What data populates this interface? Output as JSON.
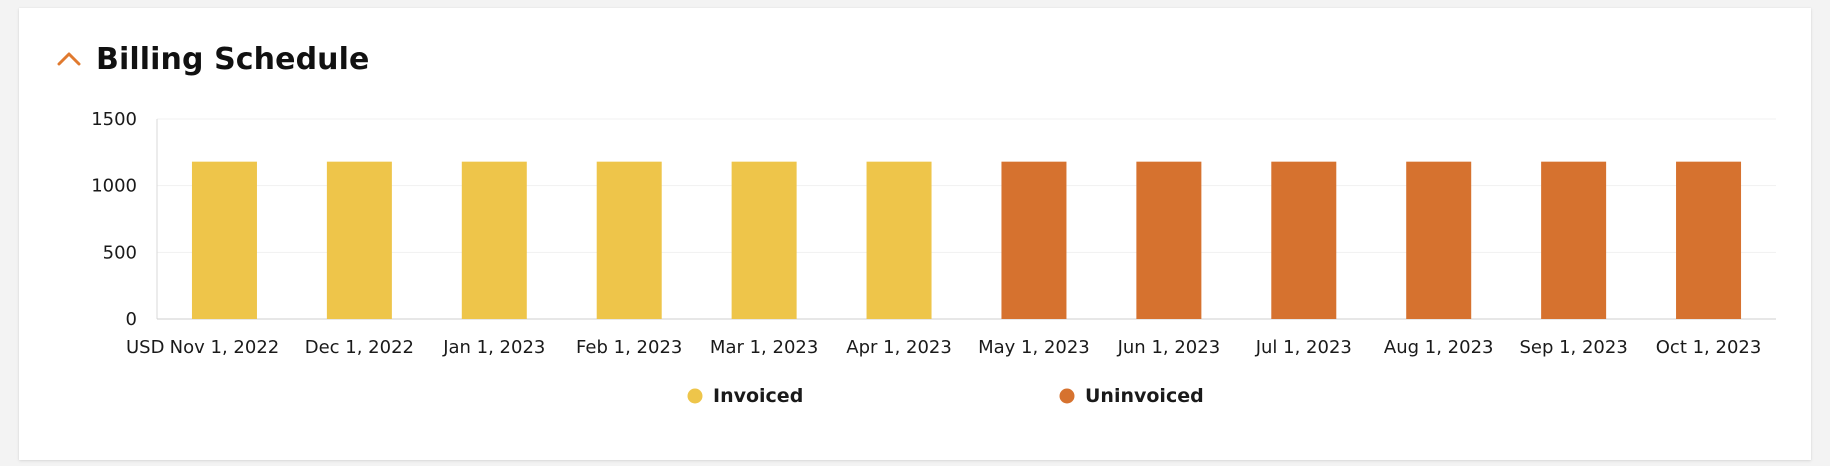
{
  "card": {
    "title": "Billing Schedule"
  },
  "icons": {
    "collapse": "chevron-up-icon"
  },
  "colors": {
    "accent": "#e07a2f",
    "invoiced": "#eec54a",
    "uninvoiced": "#d6722f"
  },
  "chart_data": {
    "type": "bar",
    "title": "Billing Schedule",
    "xlabel": "",
    "ylabel": "",
    "unit_label": "USD",
    "ylim": [
      0,
      1500
    ],
    "yticks": [
      "0",
      "500",
      "1000",
      "1500"
    ],
    "grid": true,
    "legend_position": "bottom",
    "categories": [
      "Nov 1, 2022",
      "Dec 1, 2022",
      "Jan 1, 2023",
      "Feb 1, 2023",
      "Mar 1, 2023",
      "Apr 1, 2023",
      "May 1, 2023",
      "Jun 1, 2023",
      "Jul 1, 2023",
      "Aug 1, 2023",
      "Sep 1, 2023",
      "Oct 1, 2023"
    ],
    "series": [
      {
        "name": "Invoiced",
        "color": "#eec54a",
        "values": [
          1180,
          1180,
          1180,
          1180,
          1180,
          1180,
          0,
          0,
          0,
          0,
          0,
          0
        ]
      },
      {
        "name": "Uninvoiced",
        "color": "#d6722f",
        "values": [
          0,
          0,
          0,
          0,
          0,
          0,
          1180,
          1180,
          1180,
          1180,
          1180,
          1180
        ]
      }
    ]
  }
}
